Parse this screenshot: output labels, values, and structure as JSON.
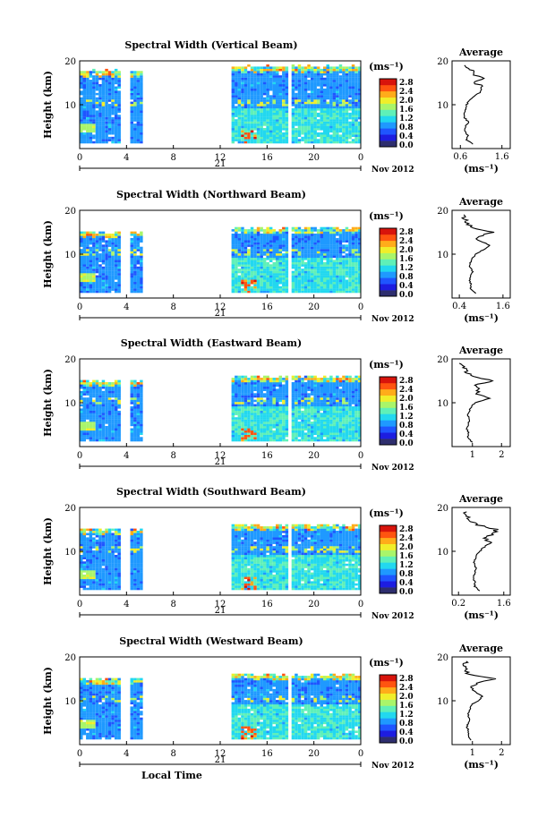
{
  "date_label": "Nov 2012",
  "day_label": "21",
  "x_title": "Local Time",
  "y_title": "Height (km)",
  "unit_label": "(ms⁻¹)",
  "avg_title": "Average",
  "x_ticks": [
    "0",
    "4",
    "8",
    "12",
    "16",
    "20",
    "0"
  ],
  "y_ticks": [
    "20",
    "10"
  ],
  "colorbar_ticks": [
    "2.8",
    "2.4",
    "2.0",
    "1.6",
    "1.2",
    "0.8",
    "0.4",
    "0.0"
  ],
  "colors": {
    "low": "#1a2fd0",
    "high": "#d01a10",
    "cmap": [
      "#2e2e6e",
      "#1d1de0",
      "#1f55ff",
      "#1f99ff",
      "#22d8ef",
      "#5ff0b8",
      "#a9f56a",
      "#f0ee2a",
      "#ffac1a",
      "#ff5410",
      "#d8140c"
    ]
  },
  "chart_data": [
    {
      "type": "heatmap",
      "title": "Spectral Width (Vertical Beam)",
      "xlabel": "",
      "ylabel": "Height (km)",
      "xlim": [
        0,
        24
      ],
      "ylim": [
        0,
        20
      ],
      "zlim": [
        0,
        2.8
      ],
      "gaps": [
        [
          3.3,
          4.1
        ],
        [
          5.3,
          12.7
        ],
        [
          17.6,
          17.9
        ]
      ],
      "top_km": 18.2,
      "avg": {
        "xlabel": "(ms⁻¹)",
        "xticks": [
          "0.6",
          "1.6"
        ],
        "xlim": [
          0.4,
          1.8
        ],
        "profile_h": [
          1,
          2,
          3,
          4,
          5,
          6,
          7,
          8,
          9,
          10,
          11,
          12,
          13,
          14,
          15,
          16,
          17,
          18,
          19
        ],
        "profile_v": [
          0.9,
          0.75,
          0.78,
          0.7,
          0.72,
          0.8,
          0.7,
          0.68,
          0.72,
          0.75,
          0.82,
          0.95,
          1.05,
          1.15,
          0.95,
          1.12,
          0.9,
          0.85,
          0.75
        ]
      }
    },
    {
      "type": "heatmap",
      "title": "Spectral Width (Northward Beam)",
      "xlabel": "",
      "ylabel": "Height (km)",
      "xlim": [
        0,
        24
      ],
      "ylim": [
        0,
        20
      ],
      "zlim": [
        0,
        2.8
      ],
      "gaps": [
        [
          3.3,
          4.1
        ],
        [
          5.3,
          12.7
        ],
        [
          17.6,
          17.9
        ]
      ],
      "top_km": 15.5,
      "avg": {
        "xlabel": "(ms⁻¹)",
        "xticks": [
          "0.4",
          "1.6"
        ],
        "xlim": [
          0.2,
          1.8
        ],
        "profile_h": [
          1,
          2,
          3,
          4,
          5,
          6,
          7,
          8,
          9,
          10,
          11,
          12,
          13,
          14,
          15,
          16,
          17,
          18,
          19
        ],
        "profile_v": [
          0.85,
          0.7,
          0.72,
          0.68,
          0.7,
          0.78,
          0.68,
          0.7,
          0.75,
          0.85,
          1.05,
          1.25,
          0.95,
          0.9,
          1.3,
          0.8,
          0.6,
          0.55,
          0.5
        ]
      }
    },
    {
      "type": "heatmap",
      "title": "Spectral Width (Eastward Beam)",
      "xlabel": "",
      "ylabel": "Height (km)",
      "xlim": [
        0,
        24
      ],
      "ylim": [
        0,
        20
      ],
      "zlim": [
        0,
        2.8
      ],
      "gaps": [
        [
          3.3,
          4.1
        ],
        [
          5.3,
          12.7
        ],
        [
          17.6,
          17.9
        ]
      ],
      "top_km": 15.5,
      "avg": {
        "xlabel": "",
        "xticks": [
          "1",
          "2"
        ],
        "xlim": [
          0.3,
          2.3
        ],
        "profile_h": [
          1,
          2,
          3,
          4,
          5,
          6,
          7,
          8,
          9,
          10,
          11,
          12,
          13,
          14,
          15,
          16,
          17,
          18,
          19
        ],
        "profile_v": [
          1.0,
          0.85,
          0.88,
          0.82,
          0.85,
          0.9,
          0.85,
          0.88,
          0.95,
          1.1,
          1.6,
          1.15,
          1.2,
          1.1,
          1.7,
          1.0,
          0.8,
          0.7,
          0.6
        ]
      }
    },
    {
      "type": "heatmap",
      "title": "Spectral Width (Southward Beam)",
      "xlabel": "",
      "ylabel": "Height (km)",
      "xlim": [
        0,
        24
      ],
      "ylim": [
        0,
        20
      ],
      "zlim": [
        0,
        2.8
      ],
      "gaps": [
        [
          3.3,
          4.1
        ],
        [
          5.3,
          12.7
        ],
        [
          17.6,
          17.9
        ]
      ],
      "top_km": 15.5,
      "avg": {
        "xlabel": "(ms⁻¹)",
        "xticks": [
          "0.2",
          "1.6"
        ],
        "xlim": [
          0.0,
          1.8
        ],
        "profile_h": [
          1,
          2,
          3,
          4,
          5,
          6,
          7,
          8,
          9,
          10,
          11,
          12,
          13,
          14,
          15,
          16,
          17,
          18,
          19
        ],
        "profile_v": [
          0.85,
          0.7,
          0.72,
          0.65,
          0.7,
          0.75,
          0.68,
          0.7,
          0.75,
          0.85,
          1.0,
          1.2,
          1.0,
          1.3,
          1.35,
          0.8,
          0.55,
          0.45,
          0.4
        ]
      }
    },
    {
      "type": "heatmap",
      "title": "Spectral Width (Westward Beam)",
      "xlabel": "Local Time",
      "ylabel": "Height (km)",
      "xlim": [
        0,
        24
      ],
      "ylim": [
        0,
        20
      ],
      "zlim": [
        0,
        2.8
      ],
      "gaps": [
        [
          3.3,
          4.1
        ],
        [
          5.3,
          12.7
        ],
        [
          17.6,
          17.9
        ]
      ],
      "top_km": 15.5,
      "avg": {
        "xlabel": "(ms⁻¹)",
        "xticks": [
          "1",
          "2"
        ],
        "xlim": [
          0.3,
          2.3
        ],
        "profile_h": [
          1,
          2,
          3,
          4,
          5,
          6,
          7,
          8,
          9,
          10,
          11,
          12,
          13,
          14,
          15,
          16,
          17,
          18,
          19
        ],
        "profile_v": [
          0.95,
          0.85,
          0.88,
          0.8,
          0.85,
          0.9,
          0.85,
          0.9,
          0.95,
          1.2,
          1.35,
          1.1,
          1.0,
          1.1,
          1.8,
          0.9,
          0.75,
          0.7,
          0.8
        ]
      }
    }
  ]
}
